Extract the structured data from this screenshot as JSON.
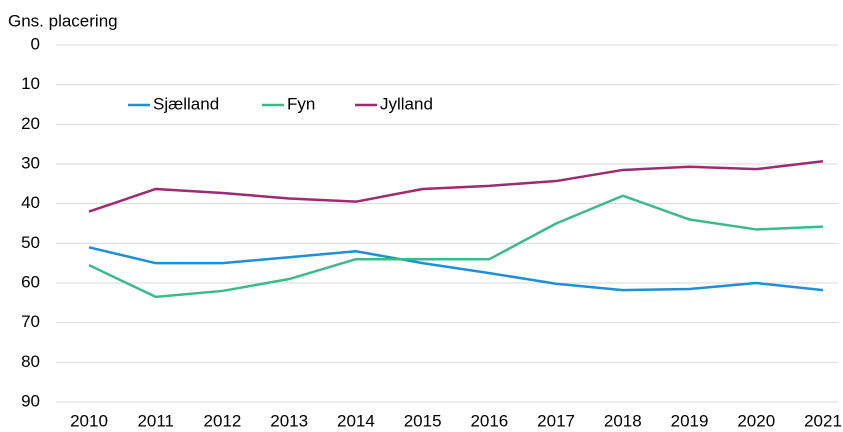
{
  "chart_data": {
    "type": "line",
    "y_label": "Gns. placering",
    "categories": [
      "2010",
      "2011",
      "2012",
      "2013",
      "2014",
      "2015",
      "2016",
      "2017",
      "2018",
      "2019",
      "2020",
      "2021"
    ],
    "series": [
      {
        "name": "Sjælland",
        "color": "#1f8fd6",
        "values": [
          51,
          55,
          55,
          53.5,
          52,
          55,
          57.5,
          60.2,
          61.8,
          61.5,
          60,
          61.8
        ]
      },
      {
        "name": "Fyn",
        "color": "#3dba8c",
        "values": [
          55.5,
          63.5,
          62,
          59,
          54,
          54,
          54,
          45,
          38,
          44,
          46.5,
          45.8
        ]
      },
      {
        "name": "Jylland",
        "color": "#9c2b70",
        "values": [
          42,
          36.3,
          37.3,
          38.7,
          39.5,
          36.3,
          35.5,
          34.3,
          31.5,
          30.7,
          31.3,
          29.3
        ]
      }
    ],
    "ylim": [
      0,
      90
    ],
    "y_inverted": true,
    "yticks": [
      0,
      10,
      20,
      30,
      40,
      50,
      60,
      70,
      80,
      90
    ],
    "grid": true
  }
}
